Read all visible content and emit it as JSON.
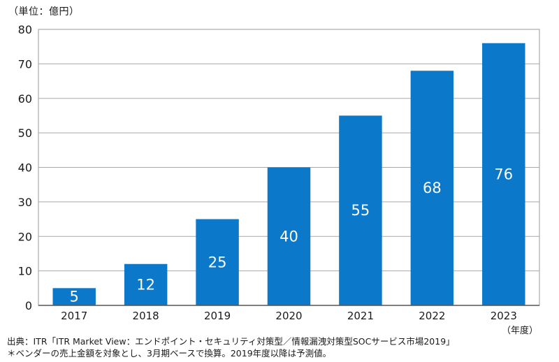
{
  "chart_data": {
    "type": "bar",
    "unit_label": "（単位：億円）",
    "xaxis_label": "（年度）",
    "categories": [
      "2017",
      "2018",
      "2019",
      "2020",
      "2021",
      "2022",
      "2023"
    ],
    "values": [
      5,
      12,
      25,
      40,
      55,
      68,
      76
    ],
    "data_labels": [
      "5",
      "12",
      "25",
      "40",
      "55",
      "68",
      "76"
    ],
    "ylim": [
      0,
      80
    ],
    "yticks": [
      0,
      10,
      20,
      30,
      40,
      50,
      60,
      70,
      80
    ],
    "grid": true,
    "bar_color": "#0B78C9",
    "label_color": "#FFFFFF"
  },
  "footnotes": {
    "source": "出典：ITR「ITR Market View：エンドポイント・セキュリティ対策型／情報漏洩対策型SOCサービス市場2019」",
    "note": "＊ベンダーの売上金額を対象とし、3月期ベースで換算。2019年度以降は予測値。"
  }
}
